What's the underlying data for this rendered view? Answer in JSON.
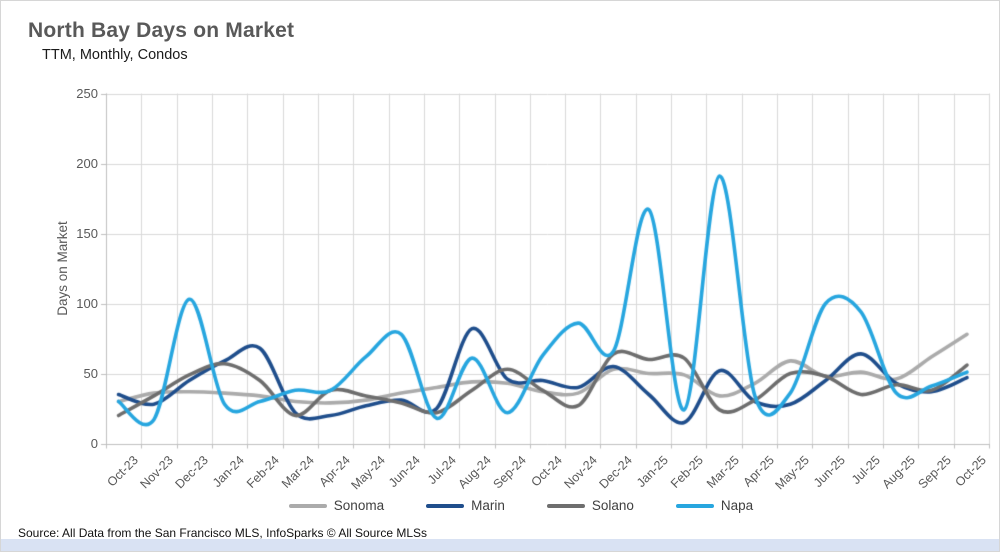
{
  "title": "North Bay Days on Market",
  "subtitle": "TTM, Monthly, Condos",
  "source": "Source: All Data from the San Francisco MLS, InfoSparks © All Source MLSs",
  "chart_data": {
    "type": "line",
    "smooth": true,
    "title": "North Bay Days on Market",
    "subtitle": "TTM, Monthly, Condos",
    "xlabel": "",
    "ylabel": "Days on Market",
    "ylim": [
      0,
      250
    ],
    "ytick_step": 50,
    "grid": true,
    "legend_position": "bottom",
    "categories": [
      "Oct-23",
      "Nov-23",
      "Dec-23",
      "Jan-24",
      "Feb-24",
      "Mar-24",
      "Apr-24",
      "May-24",
      "Jun-24",
      "Jul-24",
      "Aug-24",
      "Sep-24",
      "Oct-24",
      "Nov-24",
      "Dec-24",
      "Jan-25",
      "Feb-25",
      "Mar-25",
      "Apr-25",
      "May-25",
      "Jun-25",
      "Jul-25",
      "Aug-25",
      "Sep-25",
      "Oct-25"
    ],
    "series": [
      {
        "name": "Sonoma",
        "color": "#ABABAB",
        "values": [
          30,
          36,
          37,
          36,
          34,
          30,
          29,
          31,
          36,
          40,
          44,
          43,
          37,
          36,
          53,
          50,
          49,
          34,
          43,
          59,
          48,
          51,
          46,
          62,
          78
        ]
      },
      {
        "name": "Marin",
        "color": "#1F4E8C",
        "values": [
          35,
          28,
          45,
          59,
          68,
          22,
          20,
          27,
          31,
          25,
          82,
          46,
          45,
          40,
          55,
          35,
          15,
          52,
          30,
          28,
          45,
          64,
          43,
          37,
          47
        ]
      },
      {
        "name": "Solano",
        "color": "#6E6E6E",
        "values": [
          20,
          34,
          49,
          57,
          45,
          20,
          38,
          34,
          29,
          22,
          38,
          53,
          38,
          27,
          64,
          60,
          61,
          24,
          31,
          50,
          48,
          35,
          42,
          38,
          56
        ]
      },
      {
        "name": "Napa",
        "color": "#27A6DF",
        "values": [
          30,
          17,
          103,
          28,
          30,
          38,
          38,
          62,
          78,
          18,
          61,
          22,
          63,
          86,
          66,
          167,
          24,
          191,
          34,
          36,
          100,
          94,
          36,
          41,
          51
        ]
      }
    ]
  },
  "colors": {
    "grid": "#D9D9D9",
    "axis": "#BFBFBF",
    "tick_label": "#595959",
    "title": "#595959",
    "footer_bar": "#D9E2F3"
  }
}
